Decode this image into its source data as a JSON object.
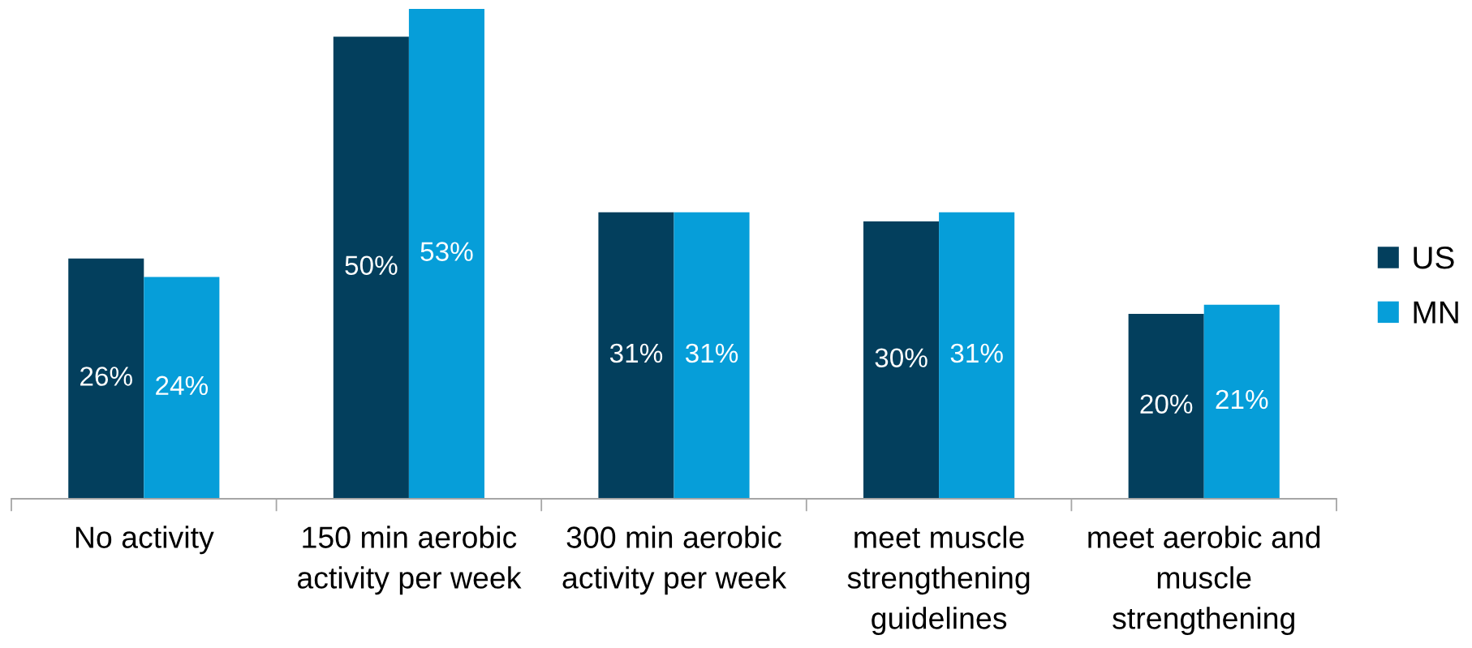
{
  "chart_data": {
    "type": "bar",
    "categories": [
      "No activity",
      "150 min aerobic\nactivity per week",
      "300 min aerobic\nactivity per week",
      "meet muscle\nstrengthening\nguidelines",
      "meet aerobic and\nmuscle\nstrengthening"
    ],
    "series": [
      {
        "name": "US",
        "color": "#033f5d",
        "values": [
          26,
          50,
          31,
          30,
          20
        ],
        "value_labels": [
          "26%",
          "50%",
          "31%",
          "30%",
          "20%"
        ]
      },
      {
        "name": "MN",
        "color": "#069ed9",
        "values": [
          24,
          53,
          31,
          31,
          21
        ],
        "value_labels": [
          "24%",
          "53%",
          "31%",
          "31%",
          "21%"
        ]
      }
    ],
    "legend": "right",
    "tick_labels": "x"
  }
}
